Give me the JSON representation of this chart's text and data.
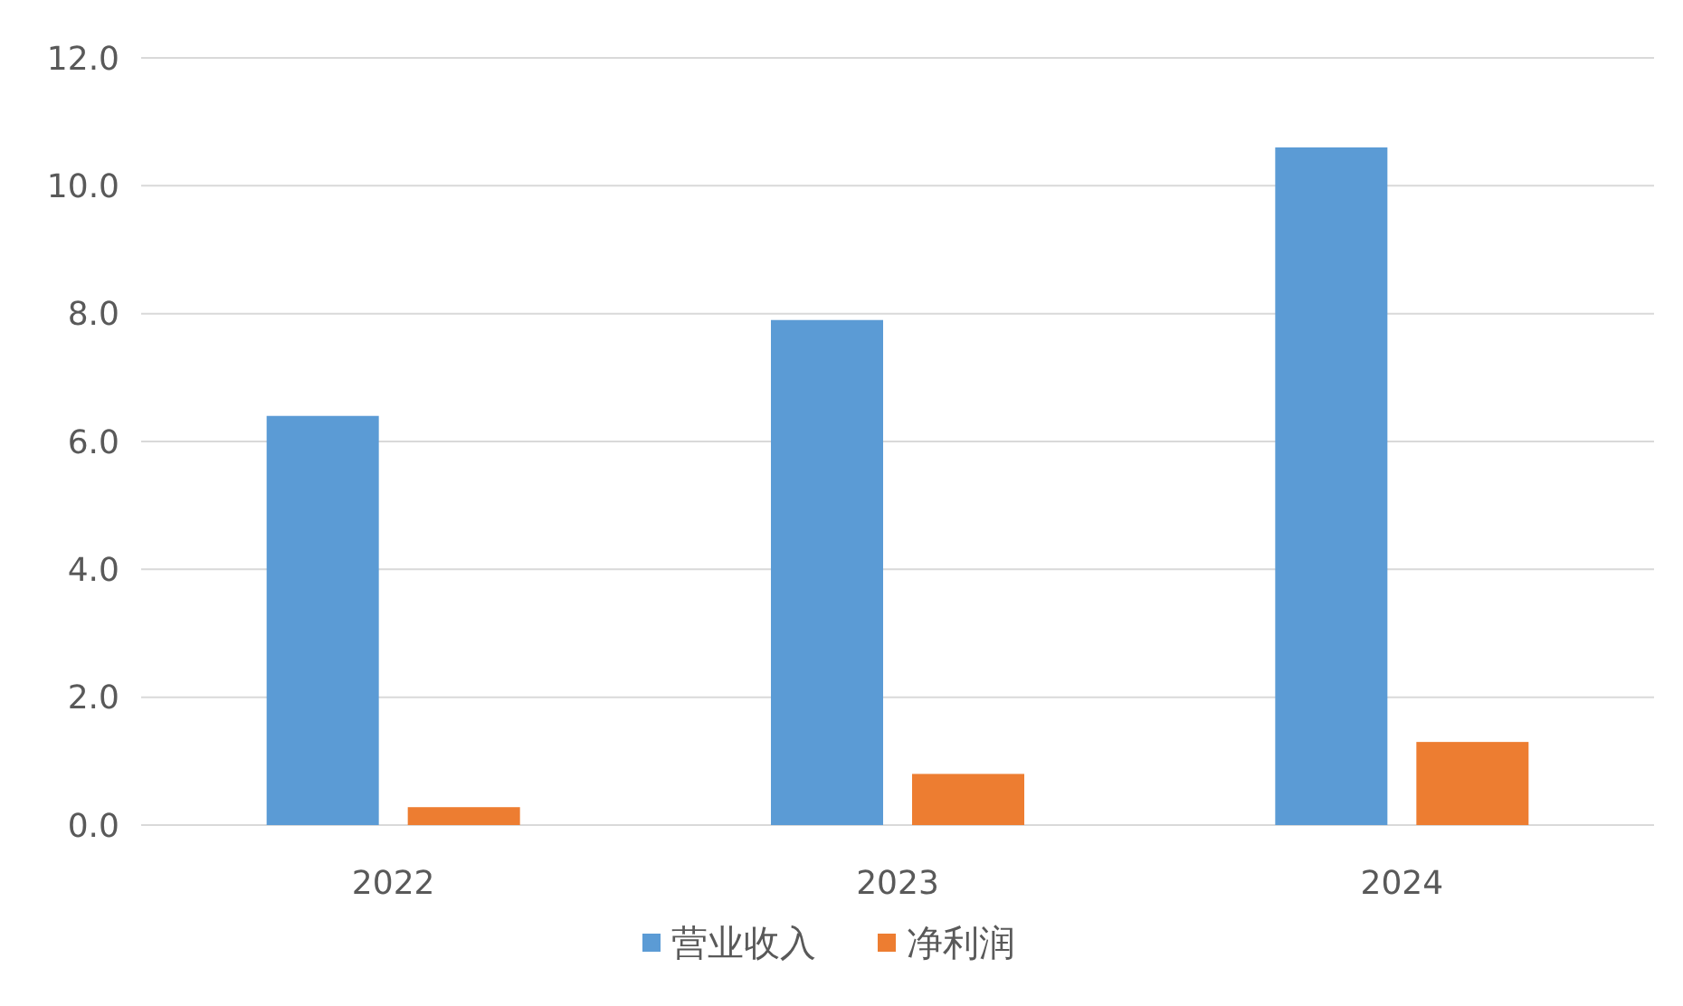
{
  "chart_data": {
    "type": "bar",
    "categories": [
      "2022",
      "2023",
      "2024"
    ],
    "series": [
      {
        "name": "营业收入",
        "color": "#5b9bd5",
        "values": [
          6.4,
          7.9,
          10.6
        ]
      },
      {
        "name": "净利润",
        "color": "#ed7d31",
        "values": [
          0.28,
          0.8,
          1.3
        ]
      }
    ],
    "ylim": [
      0,
      12
    ],
    "yticks": [
      {
        "value": 0,
        "label": "0.0"
      },
      {
        "value": 2,
        "label": "2.0"
      },
      {
        "value": 4,
        "label": "4.0"
      },
      {
        "value": 6,
        "label": "6.0"
      },
      {
        "value": 8,
        "label": "8.0"
      },
      {
        "value": 10,
        "label": "10.0"
      },
      {
        "value": 12,
        "label": "12.0"
      }
    ],
    "grid": "y",
    "legend": "bottom"
  }
}
